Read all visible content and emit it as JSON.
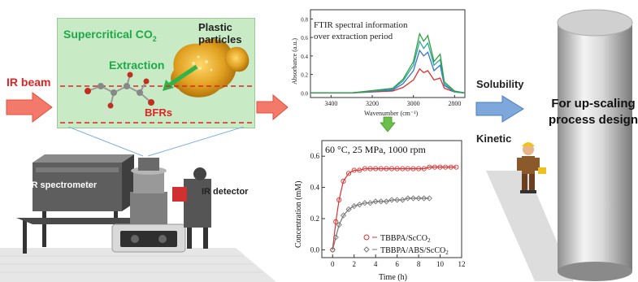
{
  "left": {
    "scf_label": "Supercritical CO",
    "scf_sub": "2",
    "plastic_label_1": "Plastic",
    "plastic_label_2": "particles",
    "extraction_label": "Extraction",
    "bfrs_label": "BFRs",
    "ir_beam_label": "IR beam",
    "ftir_label": "FTIR spectrometer",
    "detector_label": "IR detector"
  },
  "spectrum": {
    "title_1": "FTIR  spectral information",
    "title_2": "over extraction period",
    "ylabel": "Absorbance (a.u.)",
    "xlabel": "Wavenumber (cm⁻¹)",
    "xticks": [
      "3400",
      "3200",
      "3000",
      "2800"
    ],
    "yticks": [
      "0.0",
      "0.2",
      "0.4",
      "0.6",
      "0.8"
    ],
    "colors": [
      "#e03030",
      "#3a6fd6",
      "#2aa8a0",
      "#30a040"
    ]
  },
  "kinetics": {
    "condition": "60 °C, 25 MPa, 1000 rpm",
    "ylabel": "Concentration (mM)",
    "xlabel": "Time (h)",
    "legend_1": "TBBPA/ScCO",
    "legend_1_sub": "2",
    "legend_2": "TBBPA/ABS/ScCO",
    "legend_2_sub": "2"
  },
  "chart_data": [
    {
      "type": "line",
      "title": "FTIR  spectral information over extraction period",
      "xlabel": "Wavenumber (cm-1)",
      "ylabel": "Absorbance (a.u.)",
      "xlim": [
        3500,
        2750
      ],
      "ylim": [
        -0.05,
        0.9
      ],
      "x": [
        3500,
        3300,
        3100,
        3050,
        3000,
        2970,
        2950,
        2930,
        2900,
        2870,
        2850,
        2800,
        2750
      ],
      "series": [
        {
          "values": [
            0.0,
            0.0,
            0.02,
            0.06,
            0.14,
            0.26,
            0.22,
            0.24,
            0.14,
            0.16,
            0.05,
            0.01,
            0.0
          ]
        },
        {
          "values": [
            0.0,
            0.0,
            0.03,
            0.1,
            0.24,
            0.46,
            0.4,
            0.44,
            0.24,
            0.3,
            0.08,
            0.01,
            0.0
          ]
        },
        {
          "values": [
            0.0,
            0.0,
            0.04,
            0.13,
            0.3,
            0.56,
            0.48,
            0.54,
            0.3,
            0.36,
            0.1,
            0.01,
            0.0
          ]
        },
        {
          "values": [
            0.0,
            0.0,
            0.05,
            0.15,
            0.34,
            0.64,
            0.56,
            0.62,
            0.34,
            0.42,
            0.12,
            0.02,
            0.0
          ]
        }
      ]
    },
    {
      "type": "scatter",
      "title": "60 °C, 25 MPa, 1000 rpm",
      "xlabel": "Time (h)",
      "ylabel": "Concentration (mM)",
      "xlim": [
        -1,
        12
      ],
      "ylim": [
        -0.05,
        0.7
      ],
      "xticks": [
        0,
        2,
        4,
        6,
        8,
        10,
        12
      ],
      "yticks": [
        0.0,
        0.2,
        0.4,
        0.6
      ],
      "series": [
        {
          "name": "TBBPA/ScCO2",
          "color": "#e03030",
          "x": [
            0,
            0.3,
            0.6,
            1.0,
            1.5,
            2,
            2.5,
            3,
            3.5,
            4,
            4.5,
            5,
            5.5,
            6,
            6.5,
            7,
            7.5,
            8,
            8.5,
            9,
            9.5,
            10,
            10.5,
            11,
            11.5
          ],
          "y": [
            0.0,
            0.18,
            0.32,
            0.44,
            0.49,
            0.51,
            0.51,
            0.52,
            0.52,
            0.52,
            0.52,
            0.52,
            0.52,
            0.52,
            0.52,
            0.52,
            0.52,
            0.52,
            0.52,
            0.53,
            0.53,
            0.53,
            0.53,
            0.53,
            0.53
          ]
        },
        {
          "name": "TBBPA/ABS/ScCO2",
          "color": "#777777",
          "x": [
            0,
            0.3,
            0.6,
            1.0,
            1.5,
            2,
            2.5,
            3,
            3.5,
            4,
            4.5,
            5,
            5.5,
            6,
            6.5,
            7,
            7.5,
            8,
            8.5,
            9
          ],
          "y": [
            0.0,
            0.08,
            0.16,
            0.22,
            0.26,
            0.28,
            0.29,
            0.3,
            0.3,
            0.31,
            0.31,
            0.31,
            0.32,
            0.32,
            0.32,
            0.33,
            0.33,
            0.33,
            0.33,
            0.33
          ]
        }
      ]
    }
  ],
  "right": {
    "solubility_label": "Solubility",
    "kinetic_label": "Kinetic",
    "upscale_1": "For up-scaling",
    "upscale_2": "process design"
  }
}
